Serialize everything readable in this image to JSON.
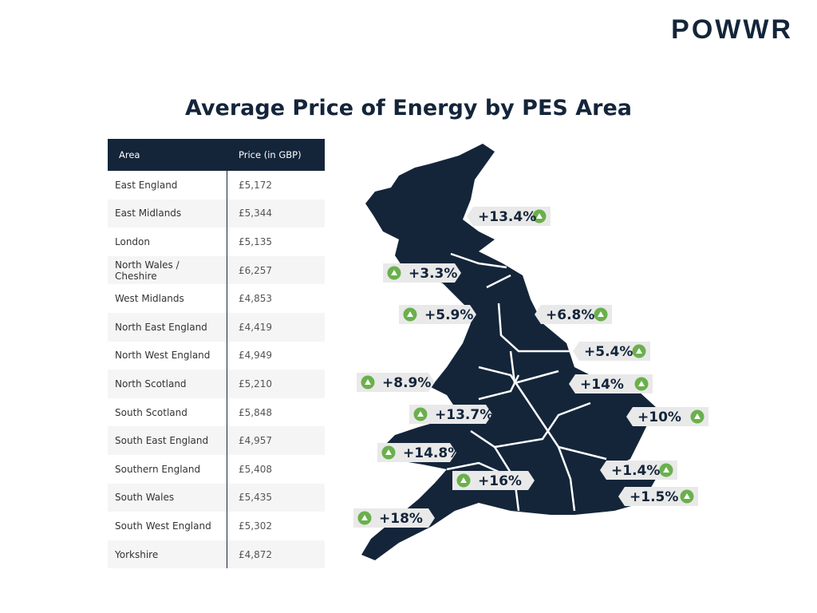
{
  "logo": "POWWR",
  "title": "Average Price of Energy by PES Area",
  "table": {
    "headers": [
      "Area",
      "Price (in GBP)"
    ],
    "rows": [
      [
        "East England",
        "£5,172"
      ],
      [
        "East Midlands",
        "£5,344"
      ],
      [
        "London",
        "£5,135"
      ],
      [
        "North Wales / Cheshire",
        "£6,257"
      ],
      [
        "West Midlands",
        "£4,853"
      ],
      [
        "North East England",
        "£4,419"
      ],
      [
        "North West England",
        "£4,949"
      ],
      [
        "North Scotland",
        "£5,210"
      ],
      [
        "South Scotland",
        "£5,848"
      ],
      [
        "South East England",
        "£4,957"
      ],
      [
        "Southern England",
        "£5,408"
      ],
      [
        "South Wales",
        "£5,435"
      ],
      [
        "South West England",
        "£5,302"
      ],
      [
        "Yorkshire",
        "£4,872"
      ]
    ]
  },
  "map_labels": [
    "+13.4%",
    "+3.3%",
    "+5.9%",
    "+6.8%",
    "+5.4%",
    "+8.9%",
    "+14%",
    "+13.7%",
    "+10%",
    "+14.8%",
    "+16%",
    "+1.4%",
    "+1.5%",
    "+18%"
  ]
}
